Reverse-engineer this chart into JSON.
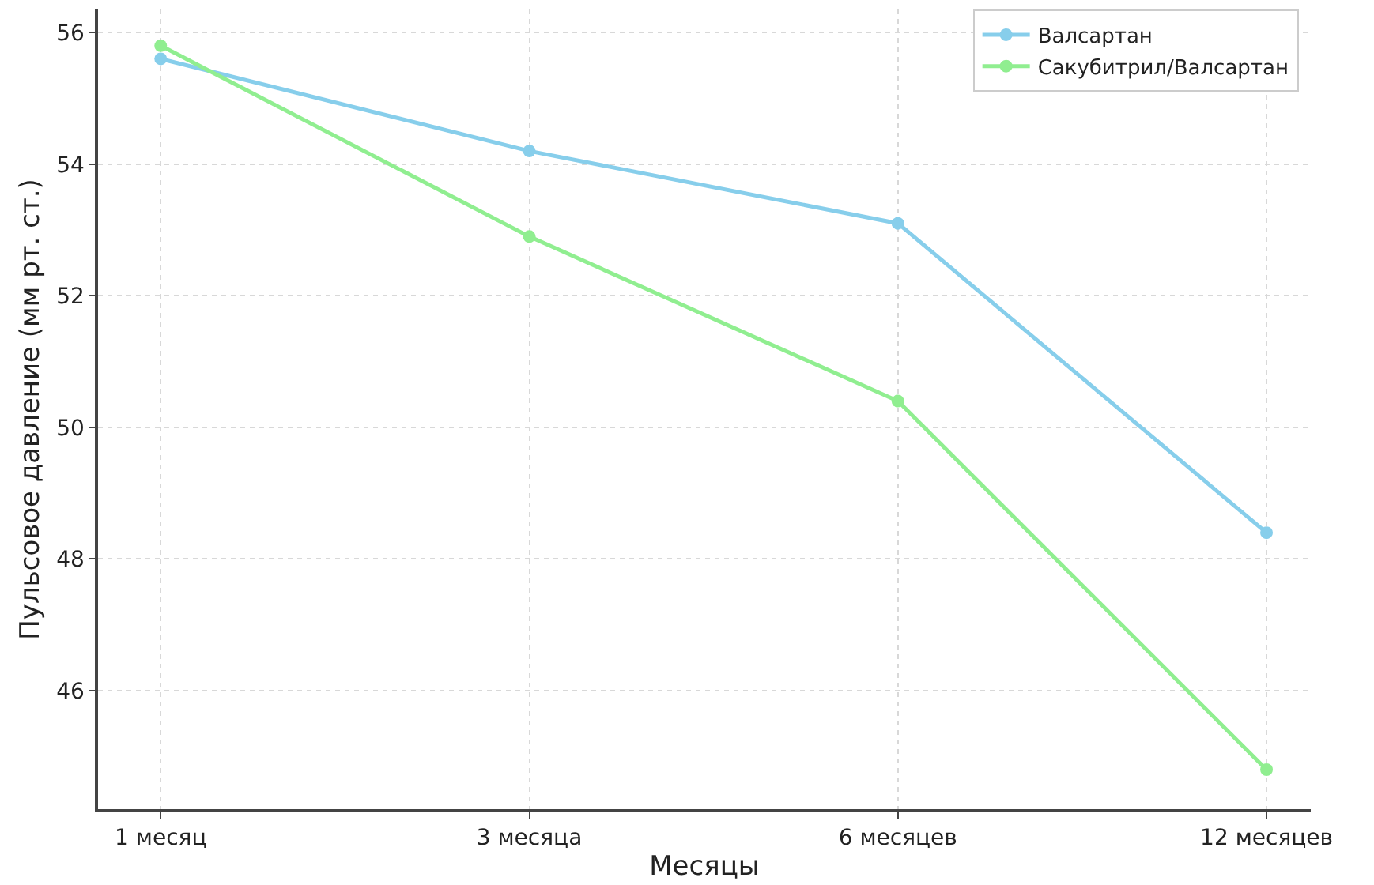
{
  "chart_data": {
    "type": "line",
    "xlabel": "Месяцы",
    "ylabel": "Пульсовое давление (мм рт. ст.)",
    "categories": [
      "1 месяц",
      "3 месяца",
      "6 месяцев",
      "12 месяцев"
    ],
    "series": [
      {
        "name": "Валсартан",
        "color": "#87ceeb",
        "values": [
          55.6,
          54.2,
          53.1,
          48.4
        ]
      },
      {
        "name": "Сакубитрил/Валсартан",
        "color": "#90ee90",
        "values": [
          55.8,
          52.9,
          50.4,
          44.8
        ]
      }
    ],
    "ylim": [
      44.2,
      56.35
    ],
    "yticks": [
      46,
      48,
      50,
      52,
      54,
      56
    ],
    "grid": true,
    "legend": "top right",
    "marker": "circle",
    "line_style": "solid"
  }
}
